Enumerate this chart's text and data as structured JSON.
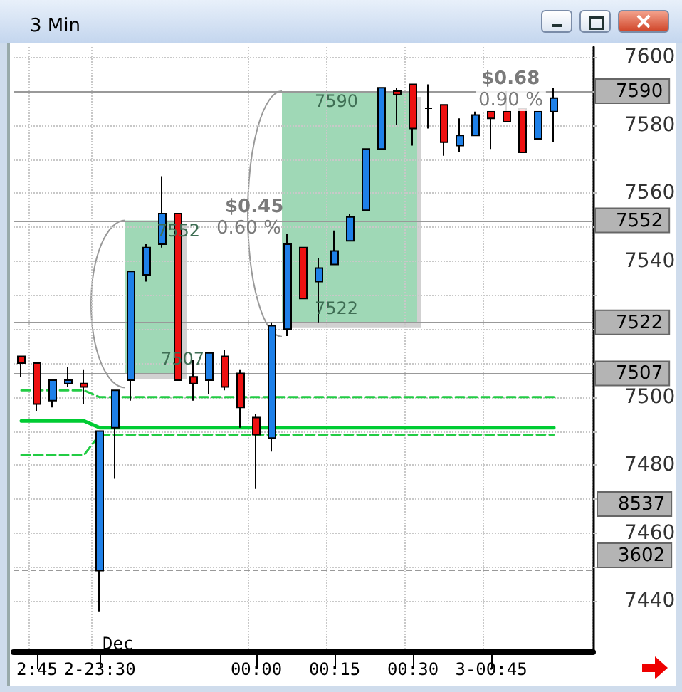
{
  "chart_data": {
    "type": "candlestick",
    "title": "3 Min",
    "categories": [
      null,
      "2:45",
      null,
      null,
      null,
      "2-23:30",
      null,
      null,
      null,
      null,
      null,
      null,
      null,
      null,
      null,
      "00:00",
      null,
      null,
      null,
      null,
      "00:15",
      null,
      null,
      null,
      null,
      "00:30",
      null,
      null,
      null,
      null,
      "3-00:45",
      null,
      null,
      null,
      null,
      null,
      null
    ],
    "ylim": [
      7425,
      7603
    ],
    "yticks": [
      7440,
      {
        "value": 7450,
        "label": null
      },
      7460,
      {
        "value": 7470,
        "label": null
      },
      7480,
      {
        "value": 7490,
        "label": null
      },
      7500,
      {
        "value": 7510,
        "label": null
      },
      {
        "value": 7520,
        "label": null
      },
      {
        "value": 7530,
        "label": null
      },
      7540,
      {
        "value": 7550,
        "label": null
      },
      7560,
      {
        "value": 7570,
        "label": null
      },
      7580,
      {
        "value": 7590,
        "label": null
      },
      7600
    ],
    "grid": true,
    "series": [
      {
        "ohlc": [
          [
            7512,
            7512,
            7506,
            7510
          ],
          [
            7510,
            7510,
            7496,
            7498
          ],
          [
            7499,
            7505,
            7497,
            7505
          ],
          [
            7504,
            7509,
            7503,
            7505
          ],
          [
            7504,
            7508,
            7498,
            7503
          ],
          [
            7449,
            7490,
            7437,
            7490
          ],
          [
            7491,
            7502,
            7476,
            7502
          ],
          [
            7505,
            7537,
            7499,
            7537
          ],
          [
            7536,
            7545,
            7534,
            7544
          ],
          [
            7545,
            7565,
            7544,
            7554
          ],
          [
            7554,
            7554,
            7505,
            7505
          ],
          [
            7506,
            7511,
            7499,
            7504
          ],
          [
            7505,
            7513,
            7501,
            7513
          ],
          [
            7512,
            7514,
            7502,
            7503
          ],
          [
            7507,
            7508,
            7491,
            7497
          ],
          [
            7494,
            7495,
            7473,
            7489
          ],
          [
            7488,
            7522,
            7484,
            7521
          ],
          [
            7520,
            7548,
            7518,
            7545
          ],
          [
            7544,
            7544,
            7529,
            7529
          ],
          [
            7534,
            7541,
            7522,
            7538
          ],
          [
            7539,
            7549,
            7539,
            7543
          ],
          [
            7546,
            7554,
            7546,
            7553
          ],
          [
            7555,
            7573,
            7555,
            7573
          ],
          [
            7573,
            7591,
            7573,
            7591
          ],
          [
            7590,
            7591,
            7580,
            7589
          ],
          [
            7592,
            7592,
            7574,
            7579
          ],
          [
            7585,
            7592,
            7579,
            7585
          ],
          [
            7586,
            7586,
            7571,
            7575
          ],
          [
            7574,
            7582,
            7572,
            7577
          ],
          [
            7577,
            7584,
            7577,
            7583
          ],
          [
            7584,
            7584,
            7573,
            7582
          ],
          [
            7584,
            7590,
            7581,
            7581
          ],
          [
            7585,
            7585,
            7572,
            7572
          ],
          [
            7576,
            7584,
            7576,
            7584
          ],
          [
            7584,
            7591,
            7575,
            7588
          ],
          null,
          null
        ],
        "colors": [
          "#ee1111",
          "#ee1111",
          "#1e80e8",
          "#1e80e8",
          "#ee1111",
          "#1e80e8",
          "#1e80e8",
          "#1e80e8",
          "#1e80e8",
          "#1e80e8",
          "#ee1111",
          "#ee1111",
          "#1e80e8",
          "#ee1111",
          "#ee1111",
          "#ee1111",
          "#1e80e8",
          "#1e80e8",
          "#ee1111",
          "#1e80e8",
          "#1e80e8",
          "#1e80e8",
          "#1e80e8",
          "#1e80e8",
          "#ee1111",
          "#ee1111",
          "#000000",
          "#ee1111",
          "#1e80e8",
          "#1e80e8",
          "#ee1111",
          "#ee1111",
          "#ee1111",
          "#1e80e8",
          "#1e80e8",
          null,
          null
        ]
      },
      {
        "type": "line",
        "color": "#00cc33",
        "line_style": "solid",
        "marker": "none",
        "values": [
          7493,
          7493,
          7493,
          7493,
          7493,
          7491,
          7491,
          7491,
          7491,
          7491,
          7491,
          7491,
          7491,
          7491,
          7491,
          7491,
          7491,
          7491,
          7491,
          7491,
          7491,
          7491,
          7491,
          7491,
          7491,
          7491,
          7491,
          7491,
          7491,
          7491,
          7491,
          7491,
          7491,
          7491,
          7491,
          null,
          null
        ]
      },
      {
        "type": "line",
        "color": "#22cc44",
        "line_style": "dashed",
        "marker": "none",
        "values": [
          7502,
          7502,
          7502,
          7502,
          7502,
          7500,
          7500,
          7500,
          7500,
          7500,
          7500,
          7500,
          7500,
          7500,
          7500,
          7500,
          7500,
          7500,
          7500,
          7500,
          7500,
          7500,
          7500,
          7500,
          7500,
          7500,
          7500,
          7500,
          7500,
          7500,
          7500,
          7500,
          7500,
          7500,
          7500,
          null,
          null
        ]
      },
      {
        "type": "line",
        "color": "#22cc44",
        "line_style": "dashed",
        "marker": "none",
        "values": [
          7483,
          7483,
          7483,
          7483,
          7483,
          7489,
          7489,
          7489,
          7489,
          7489,
          7489,
          7489,
          7489,
          7489,
          7489,
          7489,
          7489,
          7489,
          7489,
          7489,
          7489,
          7489,
          7489,
          7489,
          7489,
          7489,
          7489,
          7489,
          7489,
          7489,
          7489,
          7489,
          7489,
          7489,
          7489,
          null,
          null
        ]
      }
    ],
    "ref_lines": [
      {
        "axis": "y",
        "value": 7590,
        "label": "7590",
        "color": "#999999",
        "line_style": "solid"
      },
      {
        "axis": "y",
        "value": 7552,
        "label": "7552",
        "color": "#999999",
        "line_style": "solid"
      },
      {
        "axis": "y",
        "value": 7522,
        "label": "7522",
        "color": "#999999",
        "line_style": "solid"
      },
      {
        "axis": "y",
        "value": 7507,
        "label": "7507",
        "color": "#999999",
        "line_style": "solid"
      },
      {
        "axis": "y",
        "value": 7449,
        "label": null,
        "color": "#999999",
        "line_style": "dashed"
      }
    ],
    "annotations": [
      "$0.45",
      "0.60 %",
      "$0.68",
      "0.90 %",
      {
        "text": "7552",
        "y": 7552
      },
      {
        "text": "7507",
        "y": 7507
      },
      {
        "text": "7590",
        "y": 7590
      },
      {
        "text": "7522",
        "y": 7522
      },
      "Dec",
      "8537",
      "3602"
    ]
  }
}
